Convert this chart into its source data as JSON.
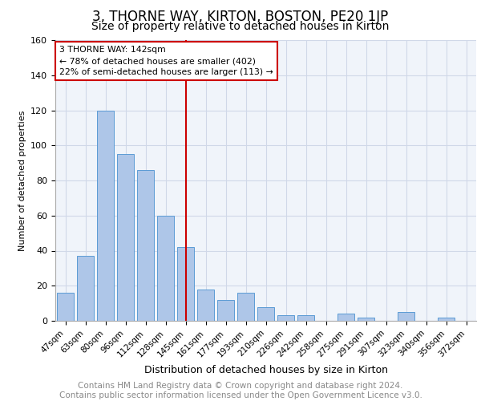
{
  "title": "3, THORNE WAY, KIRTON, BOSTON, PE20 1JP",
  "subtitle": "Size of property relative to detached houses in Kirton",
  "xlabel": "Distribution of detached houses by size in Kirton",
  "ylabel": "Number of detached properties",
  "categories": [
    "47sqm",
    "63sqm",
    "80sqm",
    "96sqm",
    "112sqm",
    "128sqm",
    "145sqm",
    "161sqm",
    "177sqm",
    "193sqm",
    "210sqm",
    "226sqm",
    "242sqm",
    "258sqm",
    "275sqm",
    "291sqm",
    "307sqm",
    "323sqm",
    "340sqm",
    "356sqm",
    "372sqm"
  ],
  "values": [
    16,
    37,
    120,
    95,
    86,
    60,
    42,
    18,
    12,
    16,
    8,
    3,
    3,
    0,
    4,
    2,
    0,
    5,
    0,
    2,
    0
  ],
  "bar_color": "#aec6e8",
  "bar_edge_color": "#5b9bd5",
  "vline_x_index": 6,
  "vline_color": "#cc0000",
  "annotation_line1": "3 THORNE WAY: 142sqm",
  "annotation_line2": "← 78% of detached houses are smaller (402)",
  "annotation_line3": "22% of semi-detached houses are larger (113) →",
  "annotation_box_color": "#ffffff",
  "annotation_box_edge_color": "#cc0000",
  "ylim": [
    0,
    160
  ],
  "yticks": [
    0,
    20,
    40,
    60,
    80,
    100,
    120,
    140,
    160
  ],
  "grid_color": "#d0d8e8",
  "footer_line1": "Contains HM Land Registry data © Crown copyright and database right 2024.",
  "footer_line2": "Contains public sector information licensed under the Open Government Licence v3.0.",
  "title_fontsize": 12,
  "subtitle_fontsize": 10,
  "footer_fontsize": 7.5,
  "footer_color": "#888888",
  "bg_color": "#f0f4fa"
}
